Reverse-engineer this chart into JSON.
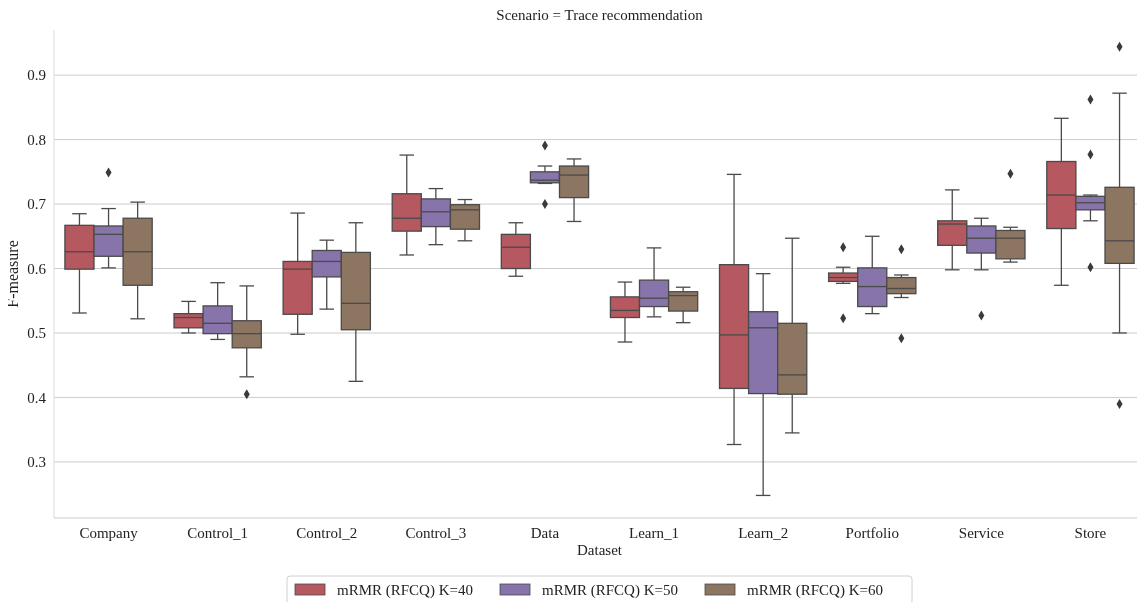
{
  "chart_data": {
    "type": "box",
    "title": "Scenario = Trace recommendation",
    "xlabel": "Dataset",
    "ylabel": "F-measure",
    "categories": [
      "Company",
      "Control_1",
      "Control_2",
      "Control_3",
      "Data",
      "Learn_1",
      "Learn_2",
      "Portfolio",
      "Service",
      "Store"
    ],
    "ylim": [
      0.213,
      0.97
    ],
    "yticks": [
      0.3,
      0.4,
      0.5,
      0.6,
      0.7,
      0.8,
      0.9
    ],
    "grid": "y",
    "legend": "bottom",
    "marker": "diamond",
    "series": [
      {
        "name": "mRMR (RFCQ) K=40",
        "color": "#b5585f",
        "boxes": [
          {
            "low": 0.531,
            "q1": 0.599,
            "median": 0.626,
            "q3": 0.667,
            "high": 0.685
          },
          {
            "low": 0.5,
            "q1": 0.508,
            "median": 0.524,
            "q3": 0.53,
            "high": 0.549
          },
          {
            "low": 0.498,
            "q1": 0.529,
            "median": 0.599,
            "q3": 0.611,
            "high": 0.686
          },
          {
            "low": 0.621,
            "q1": 0.658,
            "median": 0.678,
            "q3": 0.716,
            "high": 0.776
          },
          {
            "low": 0.588,
            "q1": 0.6,
            "median": 0.633,
            "q3": 0.653,
            "high": 0.671
          },
          {
            "low": 0.486,
            "q1": 0.524,
            "median": 0.535,
            "q3": 0.556,
            "high": 0.579
          },
          {
            "low": 0.327,
            "q1": 0.414,
            "median": 0.497,
            "q3": 0.606,
            "high": 0.746
          },
          {
            "low": 0.577,
            "q1": 0.58,
            "median": 0.586,
            "q3": 0.593,
            "high": 0.602,
            "outliers": [
              0.633,
              0.523
            ]
          },
          {
            "low": 0.598,
            "q1": 0.636,
            "median": 0.669,
            "q3": 0.674,
            "high": 0.722
          },
          {
            "low": 0.574,
            "q1": 0.662,
            "median": 0.714,
            "q3": 0.766,
            "high": 0.833
          }
        ]
      },
      {
        "name": "mRMR (RFCQ) K=50",
        "color": "#8674ab",
        "boxes": [
          {
            "low": 0.601,
            "q1": 0.619,
            "median": 0.653,
            "q3": 0.666,
            "high": 0.693,
            "outliers": [
              0.749
            ]
          },
          {
            "low": 0.49,
            "q1": 0.499,
            "median": 0.515,
            "q3": 0.542,
            "high": 0.578
          },
          {
            "low": 0.537,
            "q1": 0.587,
            "median": 0.611,
            "q3": 0.628,
            "high": 0.644
          },
          {
            "low": 0.637,
            "q1": 0.665,
            "median": 0.688,
            "q3": 0.708,
            "high": 0.724
          },
          {
            "low": 0.732,
            "q1": 0.733,
            "median": 0.737,
            "q3": 0.75,
            "high": 0.759,
            "outliers": [
              0.791,
              0.7
            ]
          },
          {
            "low": 0.525,
            "q1": 0.541,
            "median": 0.554,
            "q3": 0.582,
            "high": 0.632
          },
          {
            "low": 0.248,
            "q1": 0.406,
            "median": 0.508,
            "q3": 0.533,
            "high": 0.592
          },
          {
            "low": 0.53,
            "q1": 0.541,
            "median": 0.572,
            "q3": 0.601,
            "high": 0.65
          },
          {
            "low": 0.598,
            "q1": 0.624,
            "median": 0.647,
            "q3": 0.666,
            "high": 0.678,
            "outliers": [
              0.527
            ]
          },
          {
            "low": 0.674,
            "q1": 0.691,
            "median": 0.702,
            "q3": 0.712,
            "high": 0.714,
            "outliers": [
              0.862,
              0.777,
              0.602
            ]
          }
        ]
      },
      {
        "name": "mRMR (RFCQ) K=60",
        "color": "#8c7662",
        "boxes": [
          {
            "low": 0.522,
            "q1": 0.574,
            "median": 0.626,
            "q3": 0.678,
            "high": 0.703
          },
          {
            "low": 0.432,
            "q1": 0.477,
            "median": 0.499,
            "q3": 0.519,
            "high": 0.573,
            "outliers": [
              0.405
            ]
          },
          {
            "low": 0.425,
            "q1": 0.505,
            "median": 0.546,
            "q3": 0.625,
            "high": 0.671
          },
          {
            "low": 0.643,
            "q1": 0.661,
            "median": 0.691,
            "q3": 0.699,
            "high": 0.707
          },
          {
            "low": 0.673,
            "q1": 0.71,
            "median": 0.745,
            "q3": 0.759,
            "high": 0.77
          },
          {
            "low": 0.516,
            "q1": 0.534,
            "median": 0.558,
            "q3": 0.564,
            "high": 0.571
          },
          {
            "low": 0.345,
            "q1": 0.405,
            "median": 0.435,
            "q3": 0.515,
            "high": 0.647
          },
          {
            "low": 0.555,
            "q1": 0.561,
            "median": 0.569,
            "q3": 0.586,
            "high": 0.59,
            "outliers": [
              0.63,
              0.492
            ]
          },
          {
            "low": 0.61,
            "q1": 0.615,
            "median": 0.647,
            "q3": 0.659,
            "high": 0.664,
            "outliers": [
              0.747
            ]
          },
          {
            "low": 0.5,
            "q1": 0.608,
            "median": 0.643,
            "q3": 0.726,
            "high": 0.872,
            "outliers": [
              0.944,
              0.39
            ]
          }
        ]
      }
    ]
  }
}
